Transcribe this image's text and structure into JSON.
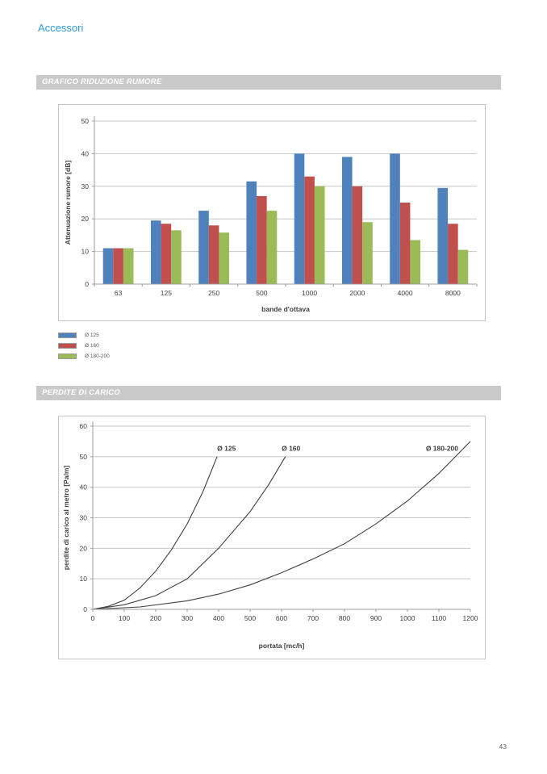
{
  "page": {
    "header_title": "Accessori",
    "page_number": "43"
  },
  "sections": {
    "noise": {
      "title": "GRAFICO RIDUZIONE RUMORE"
    },
    "pressure": {
      "title": "PERDITE DI CARICO"
    }
  },
  "colors": {
    "accent_blue": "#2E9BD6",
    "section_bar_bg": "#C9C9C9",
    "gridline": "#C6C6C6",
    "axis": "#9C9C9C",
    "curve": "#3F3F3F",
    "series_blue": "#4F81BD",
    "series_red": "#C0504D",
    "series_green": "#9BBB59"
  },
  "chart_data": [
    {
      "type": "bar",
      "categories": [
        "63",
        "125",
        "250",
        "500",
        "1000",
        "2000",
        "4000",
        "8000"
      ],
      "series": [
        {
          "name": "Ø 125",
          "color": "#4F81BD",
          "values": [
            11,
            19.5,
            22.5,
            31.5,
            40,
            39,
            40,
            29.5
          ]
        },
        {
          "name": "Ø 160",
          "color": "#C0504D",
          "values": [
            11,
            18.5,
            18,
            27,
            33,
            30,
            25,
            18.5
          ]
        },
        {
          "name": "Ø 180-200",
          "color": "#9BBB59",
          "values": [
            11,
            16.5,
            15.8,
            22.5,
            30,
            19,
            13.5,
            10.5
          ]
        }
      ],
      "xlabel": "bande d'ottava",
      "ylabel": "Attenuazione rumore [dB]",
      "ylim": [
        0,
        50
      ],
      "ytick_step": 10,
      "grid": true,
      "legend_position": "below-left"
    },
    {
      "type": "line",
      "xlabel": "portata [mc/h]",
      "ylabel": "perdite di carico al metro [Pa/m]",
      "xlim": [
        0,
        1200
      ],
      "xtick_step": 100,
      "ylim": [
        0,
        60
      ],
      "ytick_step": 10,
      "grid": true,
      "series": [
        {
          "name": "Ø 125",
          "points": [
            [
              0,
              0
            ],
            [
              50,
              1
            ],
            [
              100,
              3
            ],
            [
              150,
              7
            ],
            [
              200,
              12.5
            ],
            [
              250,
              19.5
            ],
            [
              300,
              28
            ],
            [
              350,
              38.5
            ],
            [
              395,
              50
            ]
          ],
          "label_at": [
            425,
            52
          ]
        },
        {
          "name": "Ø 160",
          "points": [
            [
              0,
              0
            ],
            [
              100,
              1.5
            ],
            [
              200,
              4.5
            ],
            [
              300,
              10
            ],
            [
              400,
              20
            ],
            [
              500,
              32
            ],
            [
              560,
              41
            ],
            [
              612,
              50
            ]
          ],
          "label_at": [
            630,
            52
          ]
        },
        {
          "name": "Ø 180-200",
          "points": [
            [
              0,
              0
            ],
            [
              150,
              0.8
            ],
            [
              300,
              2.8
            ],
            [
              400,
              5
            ],
            [
              500,
              8
            ],
            [
              600,
              12
            ],
            [
              700,
              16.5
            ],
            [
              800,
              21.5
            ],
            [
              900,
              28
            ],
            [
              1000,
              35.5
            ],
            [
              1100,
              44.5
            ],
            [
              1200,
              55
            ]
          ],
          "label_at": [
            1110,
            52
          ]
        }
      ]
    }
  ]
}
